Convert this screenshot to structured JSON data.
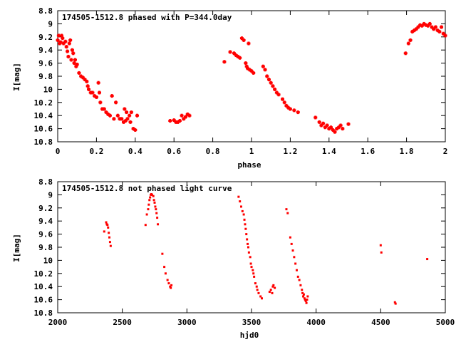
{
  "chart_data": [
    {
      "type": "scatter",
      "title": "174505-1512.8 phased with P=344.0day",
      "xlabel": "phase",
      "ylabel": "I[mag]",
      "xlim": [
        0,
        2
      ],
      "ylim": [
        10.8,
        8.8
      ],
      "y_inverted": true,
      "xticks": [
        "0",
        "0.2",
        "0.4",
        "0.6",
        "0.8",
        "1",
        "1.2",
        "1.4",
        "1.6",
        "1.8",
        "2"
      ],
      "xtick_values": [
        0,
        0.2,
        0.4,
        0.6,
        0.8,
        1.0,
        1.2,
        1.4,
        1.6,
        1.8,
        2.0
      ],
      "yticks": [
        "8.8",
        "9",
        "9.2",
        "9.4",
        "9.6",
        "9.8",
        "10",
        "10.2",
        "10.4",
        "10.6",
        "10.8"
      ],
      "ytick_values": [
        8.8,
        9.0,
        9.2,
        9.4,
        9.6,
        9.8,
        10.0,
        10.2,
        10.4,
        10.6,
        10.8
      ],
      "marker_color": "#ff0000",
      "marker": "large",
      "points": [
        [
          0.0,
          9.25
        ],
        [
          0.005,
          9.18
        ],
        [
          0.01,
          9.3
        ],
        [
          0.015,
          9.28
        ],
        [
          0.02,
          9.18
        ],
        [
          0.025,
          9.22
        ],
        [
          0.03,
          9.3
        ],
        [
          0.04,
          9.27
        ],
        [
          0.045,
          9.35
        ],
        [
          0.05,
          9.42
        ],
        [
          0.055,
          9.5
        ],
        [
          0.06,
          9.3
        ],
        [
          0.065,
          9.25
        ],
        [
          0.07,
          9.55
        ],
        [
          0.075,
          9.4
        ],
        [
          0.08,
          9.45
        ],
        [
          0.085,
          9.6
        ],
        [
          0.09,
          9.55
        ],
        [
          0.095,
          9.65
        ],
        [
          0.1,
          9.62
        ],
        [
          0.11,
          9.75
        ],
        [
          0.12,
          9.8
        ],
        [
          0.13,
          9.82
        ],
        [
          0.14,
          9.85
        ],
        [
          0.15,
          9.88
        ],
        [
          0.155,
          9.95
        ],
        [
          0.16,
          10.0
        ],
        [
          0.17,
          10.05
        ],
        [
          0.18,
          10.05
        ],
        [
          0.19,
          10.1
        ],
        [
          0.2,
          10.12
        ],
        [
          0.21,
          9.9
        ],
        [
          0.215,
          10.05
        ],
        [
          0.22,
          10.2
        ],
        [
          0.23,
          10.3
        ],
        [
          0.24,
          10.3
        ],
        [
          0.25,
          10.35
        ],
        [
          0.26,
          10.38
        ],
        [
          0.27,
          10.4
        ],
        [
          0.28,
          10.1
        ],
        [
          0.29,
          10.45
        ],
        [
          0.3,
          10.2
        ],
        [
          0.31,
          10.4
        ],
        [
          0.32,
          10.45
        ],
        [
          0.33,
          10.45
        ],
        [
          0.34,
          10.5
        ],
        [
          0.345,
          10.3
        ],
        [
          0.35,
          10.48
        ],
        [
          0.355,
          10.35
        ],
        [
          0.36,
          10.45
        ],
        [
          0.37,
          10.4
        ],
        [
          0.375,
          10.5
        ],
        [
          0.38,
          10.35
        ],
        [
          0.39,
          10.6
        ],
        [
          0.4,
          10.62
        ],
        [
          0.41,
          10.4
        ],
        [
          0.58,
          10.48
        ],
        [
          0.6,
          10.47
        ],
        [
          0.61,
          10.5
        ],
        [
          0.62,
          10.5
        ],
        [
          0.63,
          10.48
        ],
        [
          0.64,
          10.4
        ],
        [
          0.65,
          10.45
        ],
        [
          0.66,
          10.42
        ],
        [
          0.67,
          10.38
        ],
        [
          0.68,
          10.4
        ],
        [
          0.86,
          9.58
        ],
        [
          0.89,
          9.43
        ],
        [
          0.91,
          9.45
        ],
        [
          0.92,
          9.48
        ],
        [
          0.93,
          9.5
        ],
        [
          0.94,
          9.52
        ],
        [
          0.95,
          9.22
        ],
        [
          0.96,
          9.25
        ],
        [
          0.97,
          9.6
        ],
        [
          0.975,
          9.65
        ],
        [
          0.98,
          9.68
        ],
        [
          0.985,
          9.3
        ],
        [
          0.99,
          9.7
        ],
        [
          1.0,
          9.72
        ],
        [
          1.01,
          9.75
        ],
        [
          1.06,
          9.65
        ],
        [
          1.07,
          9.7
        ],
        [
          1.08,
          9.8
        ],
        [
          1.09,
          9.85
        ],
        [
          1.1,
          9.9
        ],
        [
          1.11,
          9.95
        ],
        [
          1.12,
          10.0
        ],
        [
          1.13,
          10.05
        ],
        [
          1.14,
          10.08
        ],
        [
          1.16,
          10.15
        ],
        [
          1.17,
          10.2
        ],
        [
          1.18,
          10.25
        ],
        [
          1.19,
          10.28
        ],
        [
          1.2,
          10.3
        ],
        [
          1.22,
          10.32
        ],
        [
          1.24,
          10.35
        ],
        [
          1.33,
          10.43
        ],
        [
          1.35,
          10.5
        ],
        [
          1.36,
          10.55
        ],
        [
          1.37,
          10.52
        ],
        [
          1.38,
          10.58
        ],
        [
          1.39,
          10.55
        ],
        [
          1.4,
          10.6
        ],
        [
          1.41,
          10.58
        ],
        [
          1.42,
          10.62
        ],
        [
          1.43,
          10.65
        ],
        [
          1.44,
          10.6
        ],
        [
          1.45,
          10.58
        ],
        [
          1.46,
          10.55
        ],
        [
          1.47,
          10.6
        ],
        [
          1.5,
          10.53
        ],
        [
          1.795,
          9.45
        ],
        [
          1.81,
          9.3
        ],
        [
          1.82,
          9.25
        ],
        [
          1.83,
          9.12
        ],
        [
          1.84,
          9.1
        ],
        [
          1.85,
          9.08
        ],
        [
          1.86,
          9.05
        ],
        [
          1.87,
          9.02
        ],
        [
          1.88,
          9.03
        ],
        [
          1.89,
          9.0
        ],
        [
          1.9,
          9.02
        ],
        [
          1.91,
          9.03
        ],
        [
          1.92,
          9.0
        ],
        [
          1.93,
          9.05
        ],
        [
          1.94,
          9.08
        ],
        [
          1.95,
          9.05
        ],
        [
          1.96,
          9.1
        ],
        [
          1.97,
          9.12
        ],
        [
          1.98,
          9.05
        ],
        [
          1.99,
          9.15
        ],
        [
          2.0,
          9.18
        ]
      ]
    },
    {
      "type": "scatter",
      "title": "174505-1512.8 not phased light curve",
      "xlabel": "hjd0",
      "ylabel": "I[mag]",
      "xlim": [
        2000,
        5000
      ],
      "ylim": [
        10.8,
        8.8
      ],
      "y_inverted": true,
      "xticks": [
        "2000",
        "2500",
        "3000",
        "3500",
        "4000",
        "4500",
        "5000"
      ],
      "xtick_values": [
        2000,
        2500,
        3000,
        3500,
        4000,
        4500,
        5000
      ],
      "yticks": [
        "8.8",
        "9",
        "9.2",
        "9.4",
        "9.6",
        "9.8",
        "10",
        "10.2",
        "10.4",
        "10.6",
        "10.8"
      ],
      "ytick_values": [
        8.8,
        9.0,
        9.2,
        9.4,
        9.6,
        9.8,
        10.0,
        10.2,
        10.4,
        10.6,
        10.8
      ],
      "marker_color": "#ff0000",
      "marker": "small",
      "points": [
        [
          2360,
          9.56
        ],
        [
          2375,
          9.42
        ],
        [
          2380,
          9.45
        ],
        [
          2385,
          9.46
        ],
        [
          2390,
          9.5
        ],
        [
          2395,
          9.58
        ],
        [
          2400,
          9.65
        ],
        [
          2405,
          9.72
        ],
        [
          2410,
          9.78
        ],
        [
          2680,
          9.46
        ],
        [
          2690,
          9.3
        ],
        [
          2700,
          9.22
        ],
        [
          2705,
          9.15
        ],
        [
          2710,
          9.08
        ],
        [
          2715,
          9.04
        ],
        [
          2720,
          9.0
        ],
        [
          2725,
          8.99
        ],
        [
          2730,
          9.0
        ],
        [
          2740,
          9.02
        ],
        [
          2745,
          9.08
        ],
        [
          2750,
          9.12
        ],
        [
          2755,
          9.18
        ],
        [
          2760,
          9.22
        ],
        [
          2765,
          9.28
        ],
        [
          2770,
          9.35
        ],
        [
          2775,
          9.45
        ],
        [
          2810,
          9.9
        ],
        [
          2825,
          10.1
        ],
        [
          2835,
          10.2
        ],
        [
          2850,
          10.3
        ],
        [
          2860,
          10.35
        ],
        [
          2870,
          10.4
        ],
        [
          2875,
          10.42
        ],
        [
          2880,
          10.38
        ],
        [
          3400,
          9.03
        ],
        [
          3410,
          9.1
        ],
        [
          3420,
          9.18
        ],
        [
          3430,
          9.25
        ],
        [
          3440,
          9.3
        ],
        [
          3445,
          9.38
        ],
        [
          3450,
          9.45
        ],
        [
          3455,
          9.52
        ],
        [
          3460,
          9.6
        ],
        [
          3465,
          9.68
        ],
        [
          3470,
          9.75
        ],
        [
          3475,
          9.8
        ],
        [
          3480,
          9.88
        ],
        [
          3490,
          9.95
        ],
        [
          3495,
          10.05
        ],
        [
          3500,
          10.1
        ],
        [
          3510,
          10.15
        ],
        [
          3515,
          10.2
        ],
        [
          3520,
          10.25
        ],
        [
          3530,
          10.35
        ],
        [
          3540,
          10.4
        ],
        [
          3545,
          10.45
        ],
        [
          3555,
          10.5
        ],
        [
          3570,
          10.55
        ],
        [
          3580,
          10.58
        ],
        [
          3640,
          10.48
        ],
        [
          3650,
          10.45
        ],
        [
          3660,
          10.5
        ],
        [
          3665,
          10.4
        ],
        [
          3670,
          10.38
        ],
        [
          3680,
          10.42
        ],
        [
          3770,
          9.22
        ],
        [
          3780,
          9.28
        ],
        [
          3800,
          9.65
        ],
        [
          3810,
          9.75
        ],
        [
          3820,
          9.85
        ],
        [
          3830,
          9.95
        ],
        [
          3840,
          10.05
        ],
        [
          3850,
          10.15
        ],
        [
          3860,
          10.25
        ],
        [
          3870,
          10.3
        ],
        [
          3880,
          10.38
        ],
        [
          3890,
          10.45
        ],
        [
          3895,
          10.5
        ],
        [
          3900,
          10.55
        ],
        [
          3905,
          10.52
        ],
        [
          3910,
          10.58
        ],
        [
          3915,
          10.6
        ],
        [
          3920,
          10.62
        ],
        [
          3925,
          10.65
        ],
        [
          3930,
          10.6
        ],
        [
          3935,
          10.55
        ],
        [
          4500,
          9.77
        ],
        [
          4505,
          9.88
        ],
        [
          4610,
          10.64
        ],
        [
          4615,
          10.66
        ],
        [
          4860,
          9.98
        ]
      ]
    }
  ]
}
